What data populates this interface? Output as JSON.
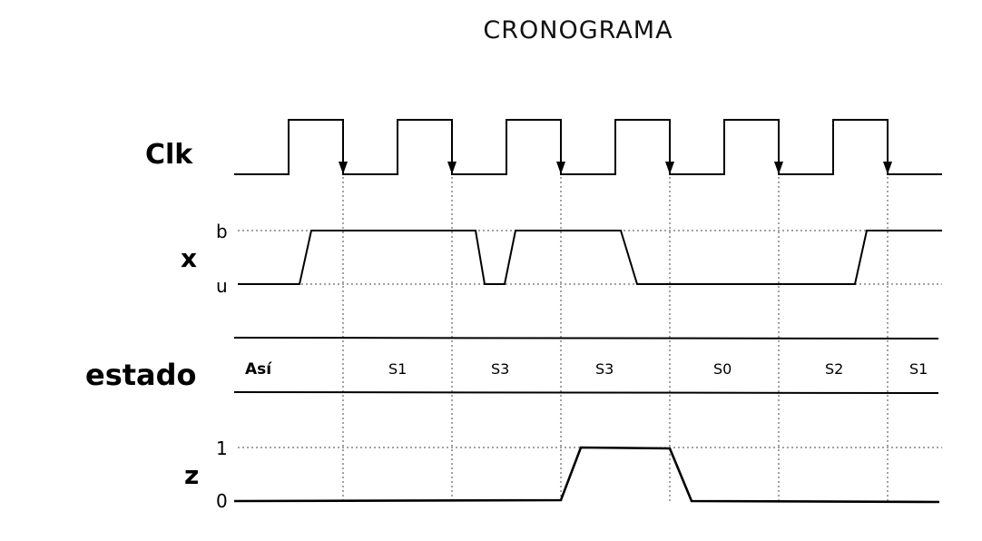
{
  "diagram": {
    "title": "CRONOGRAMA",
    "signals": {
      "clk": {
        "label": "Clk"
      },
      "x": {
        "label": "x",
        "high_label": "b",
        "low_label": "u"
      },
      "estado": {
        "label": "estado",
        "states": [
          "Así",
          "S1",
          "S3",
          "S3",
          "S0",
          "S2",
          "S1"
        ]
      },
      "z": {
        "label": "z",
        "high_label": "1",
        "low_label": "0"
      }
    }
  }
}
